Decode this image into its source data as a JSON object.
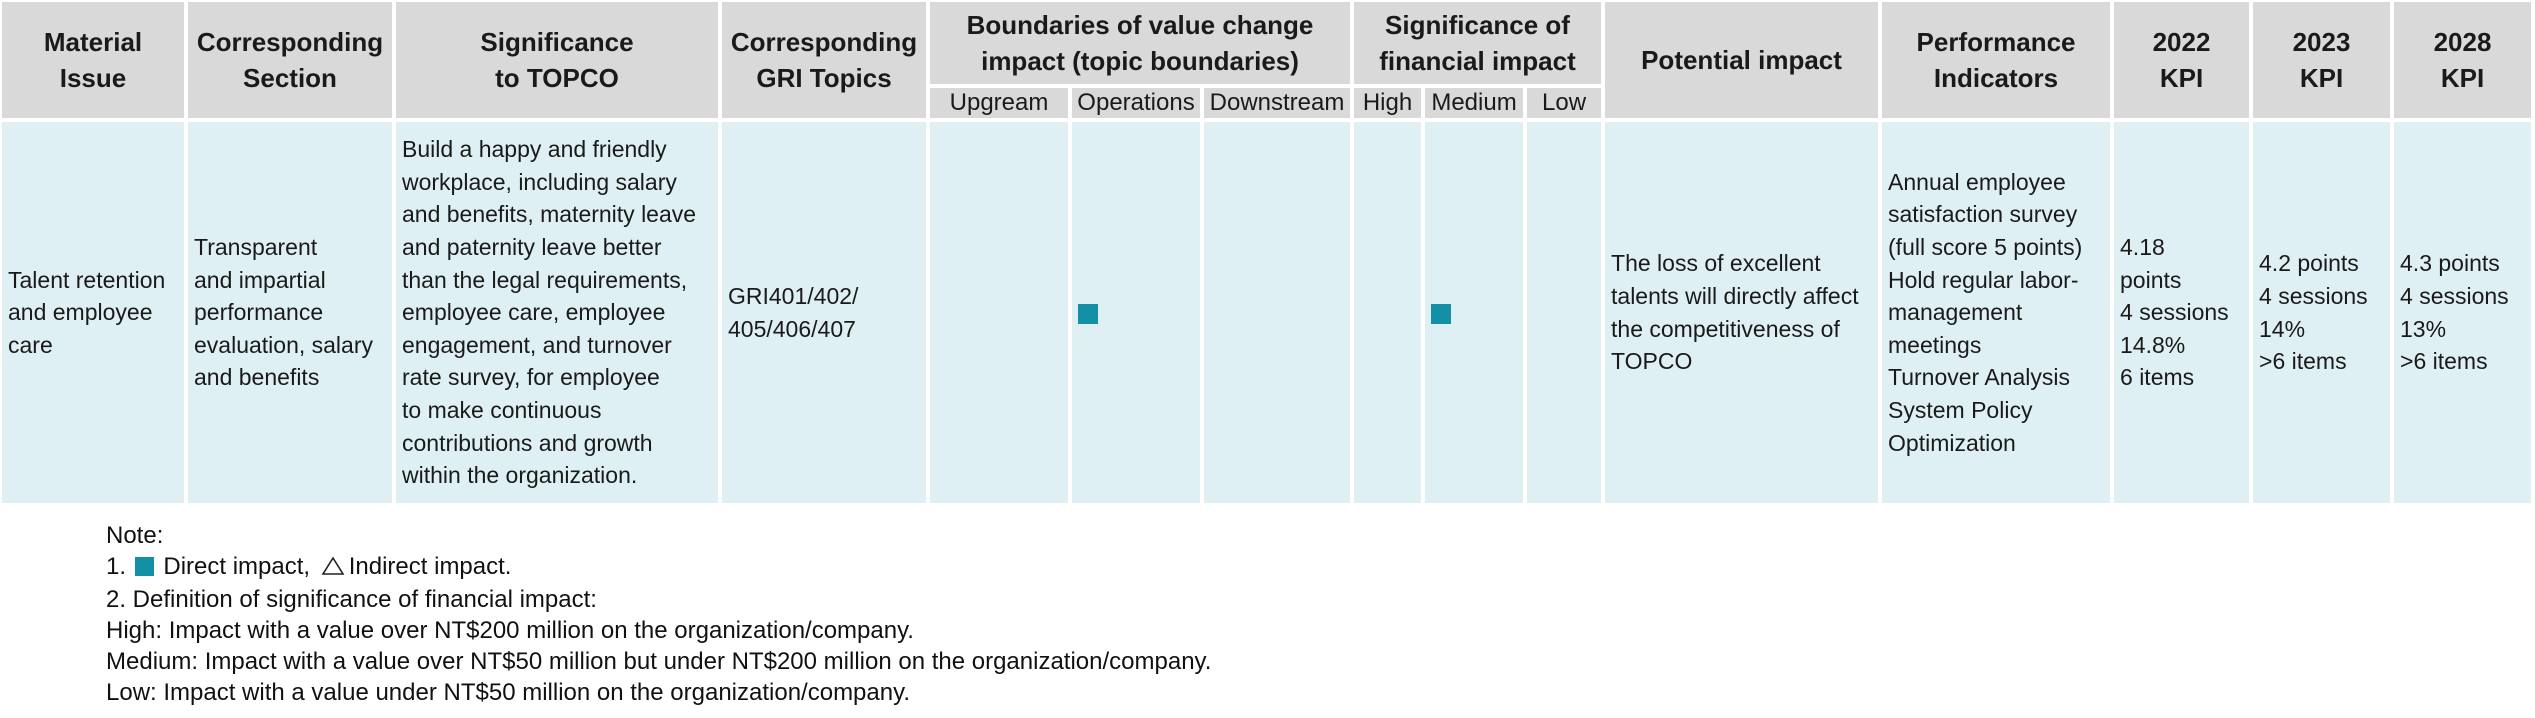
{
  "table": {
    "headers": {
      "material_issue": "Material\nIssue",
      "corresponding_section": "Corresponding\nSection",
      "significance": "Significance\nto TOPCO",
      "gri": "Corresponding\nGRI Topics",
      "boundaries": "Boundaries of value change\nimpact (topic boundaries)",
      "boundaries_sub": [
        "Upgream",
        "Operations",
        "Downstream"
      ],
      "financial": "Significance of\nfinancial impact",
      "financial_sub": [
        "High",
        "Medium",
        "Low"
      ],
      "potential_impact": "Potential impact",
      "performance_indicators": "Performance\nIndicators",
      "kpi_2022": "2022\nKPI",
      "kpi_2023": "2023\nKPI",
      "kpi_2028": "2028\nKPI"
    },
    "row": {
      "material_issue": "Talent retention\nand employee\ncare",
      "corresponding_section": "Transparent\nand impartial\nperformance\nevaluation, salary\nand benefits",
      "significance": "Build a happy and friendly\nworkplace, including salary\nand benefits, maternity leave\nand paternity leave better\nthan the legal requirements,\nemployee care, employee\nengagement, and turnover\nrate survey, for employee\nto make continuous\ncontributions and growth\nwithin the organization.",
      "gri": "GRI401/402/\n405/406/407",
      "boundaries_marks": [
        "",
        "direct",
        ""
      ],
      "financial_marks": [
        "",
        "direct",
        ""
      ],
      "potential_impact": "The loss of excellent\ntalents will directly affect\nthe competitiveness of\nTOPCO",
      "performance_indicators": "Annual employee\nsatisfaction survey\n(full score 5 points)\nHold regular labor-\nmanagement\nmeetings\nTurnover Analysis\nSystem Policy\nOptimization",
      "kpi_2022": "4.18\npoints\n4 sessions\n14.8%\n6 items",
      "kpi_2023": "4.2 points\n4 sessions\n14%\n>6 items",
      "kpi_2028": "4.3 points\n4 sessions\n13%\n>6 items"
    }
  },
  "notes": {
    "title": "Note:",
    "line1_prefix": "1.",
    "line1_direct": "Direct impact,",
    "line1_indirect": "Indirect impact.",
    "line2": "2. Definition of significance of financial impact:",
    "high": "High: Impact with a value over NT$200 million on the organization/company.",
    "medium": "Medium: Impact with a value over NT$50 million but under NT$200 million on the organization/company.",
    "low": "Low: Impact with a value under NT$50 million on the organization/company."
  },
  "icons": {
    "direct_impact": "filled-square-icon",
    "indirect_impact": "triangle-outline-icon"
  },
  "colors": {
    "header_bg": "#d9d9d9",
    "cell_bg": "#dff0f5",
    "marker": "#1490a6"
  }
}
